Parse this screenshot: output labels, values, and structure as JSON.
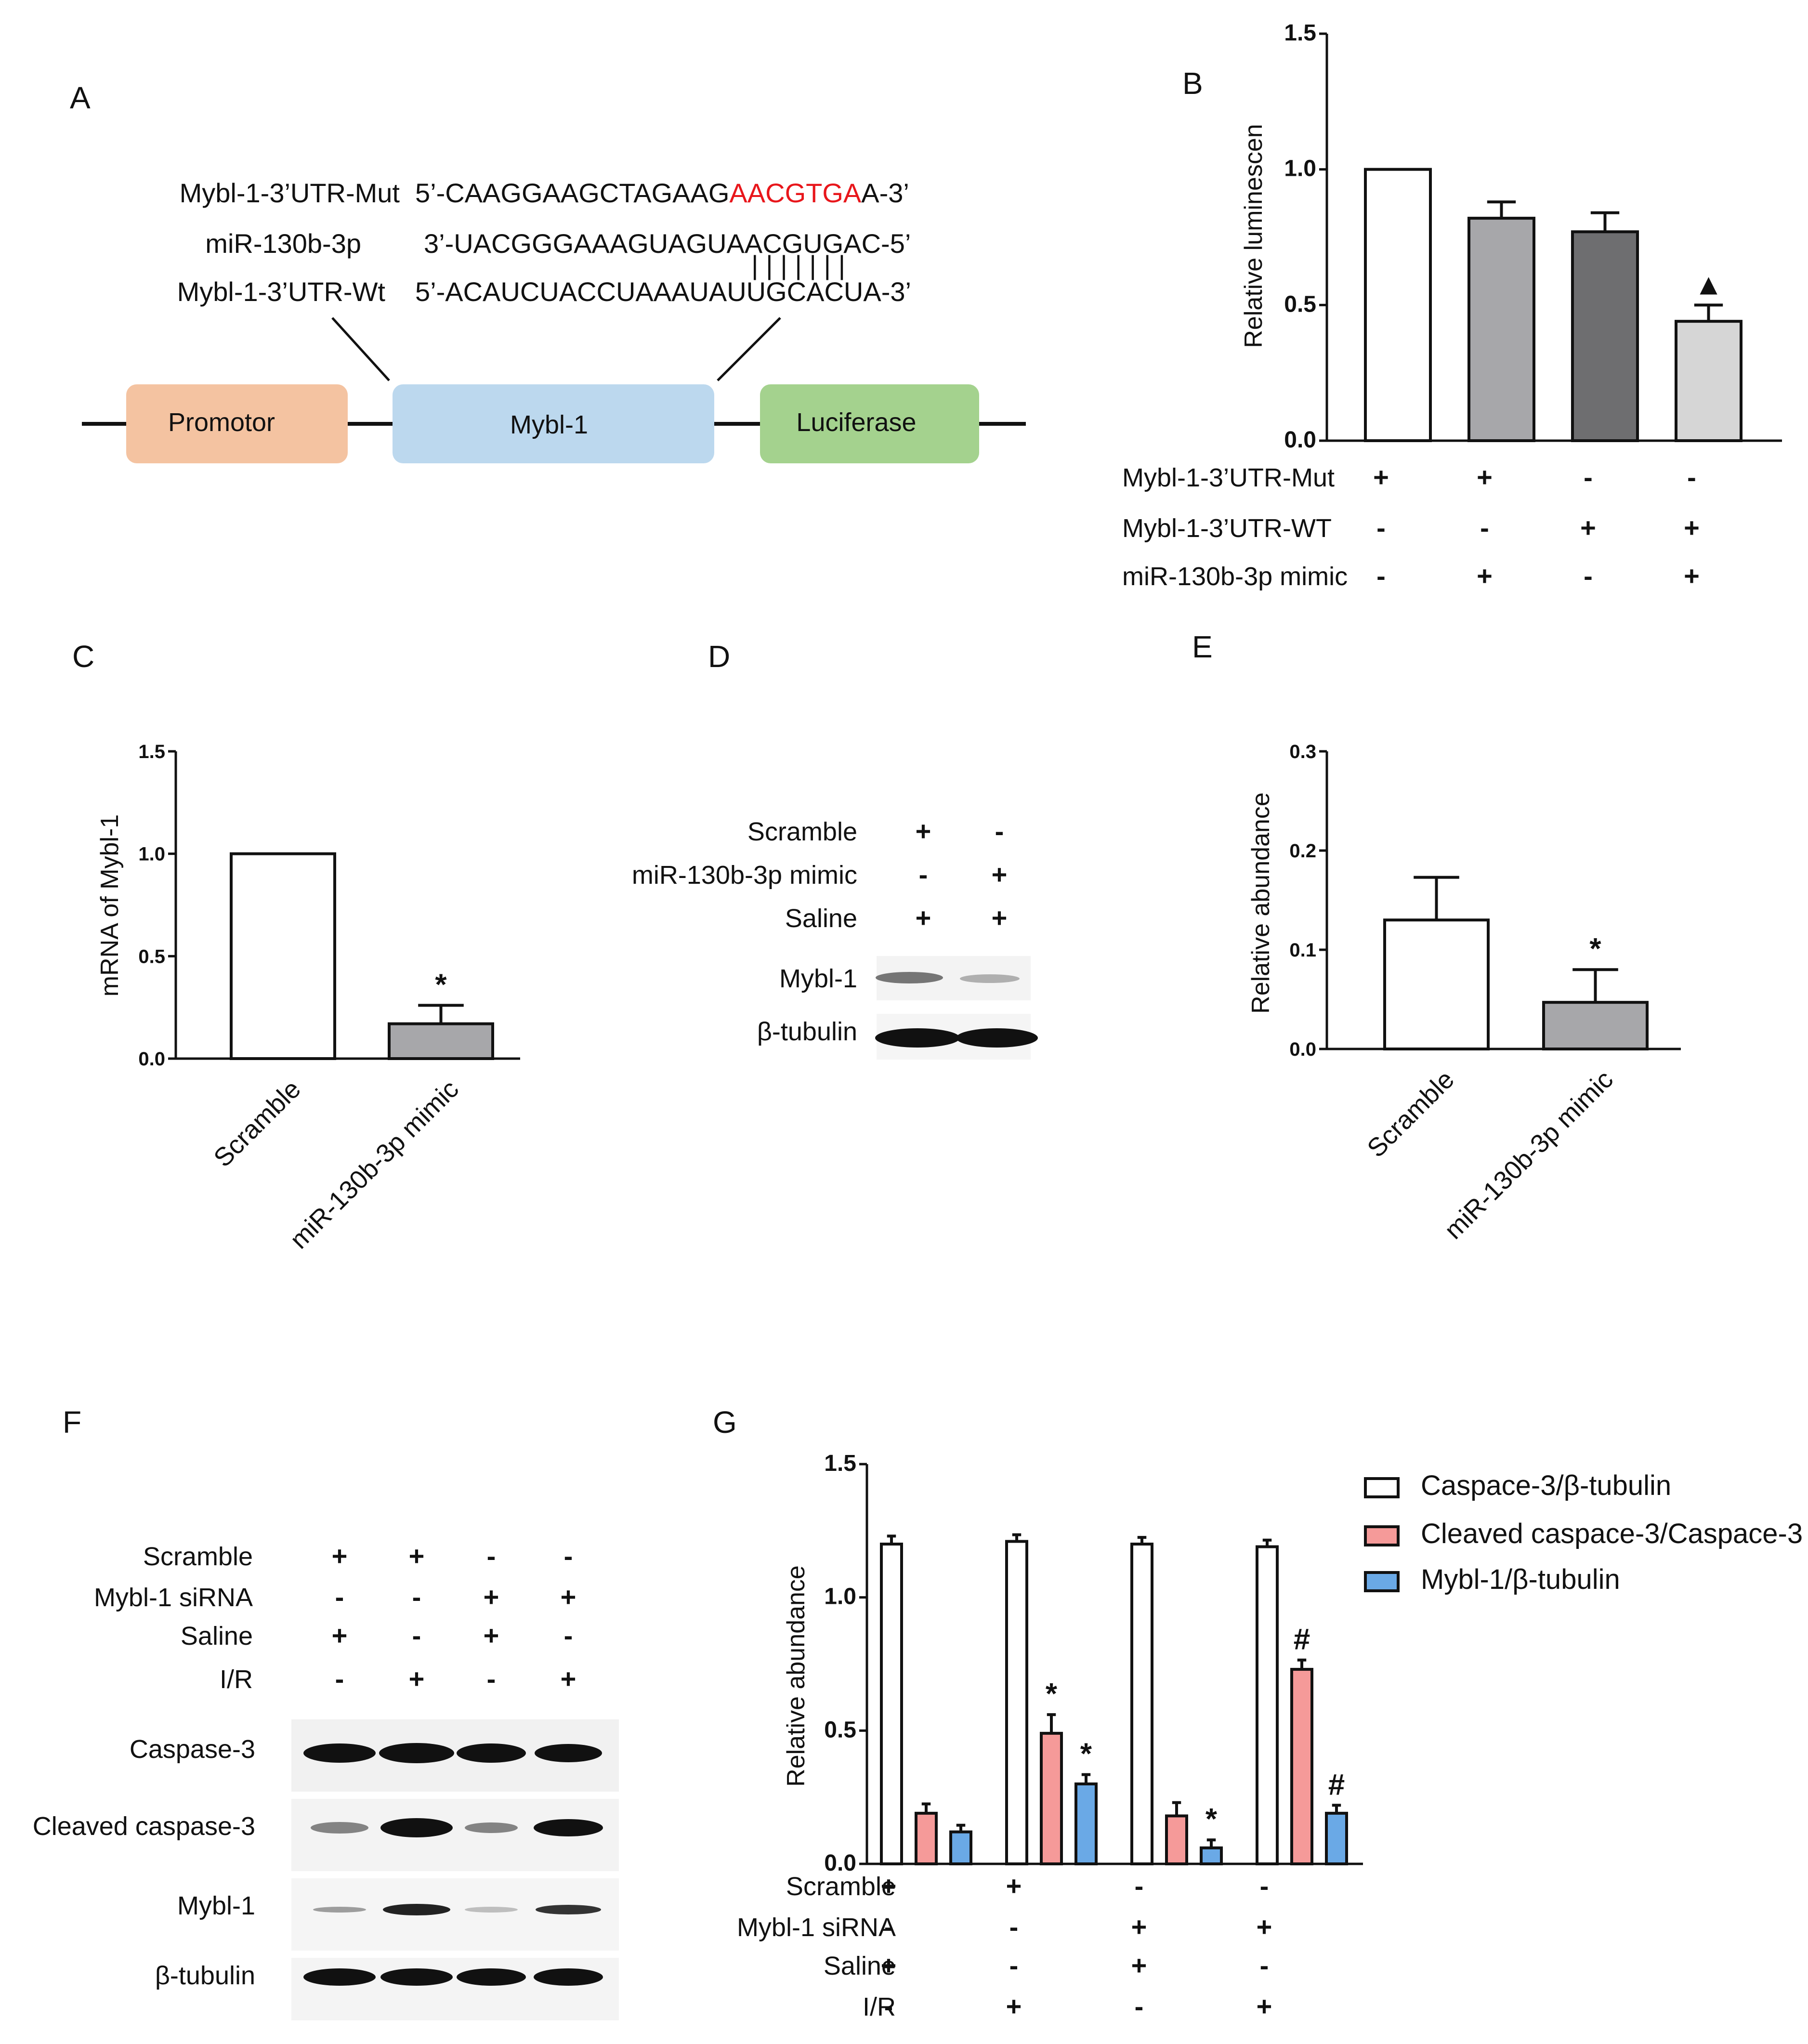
{
  "panels": {
    "A": "A",
    "B": "B",
    "C": "C",
    "D": "D",
    "E": "E",
    "F": "F",
    "G": "G"
  },
  "panelA": {
    "rows": [
      {
        "label": "Mybl-1-3’UTR-Mut",
        "seq_black": "5’-CAAGGAAGCTAGAAG",
        "seq_red": "AACGTGA",
        "seq_tail": "A-3’"
      },
      {
        "label": "miR-130b-3p",
        "seq": "3’-UACGGGAAAGUAGUAACGUGAC-5’"
      },
      {
        "label": "Mybl-1-3’UTR-Wt",
        "seq": "5’-ACAUCUACCUAAAUAUUGCACUA-3’"
      }
    ],
    "pairing": "| | | | | | |",
    "boxes": [
      {
        "label": "Promotor",
        "color": "#F4C3A1"
      },
      {
        "label": "Mybl-1",
        "color": "#BCD8EE"
      },
      {
        "label": "Luciferase",
        "color": "#A4D28E"
      }
    ],
    "red_color": "#E8161B"
  },
  "chart_data": [
    {
      "panel": "B",
      "type": "bar",
      "title": "",
      "xlabel": "",
      "ylabel": "Relative luminescen",
      "ylim": [
        0,
        1.5
      ],
      "yticks": [
        "0.0",
        "0.5",
        "1.0",
        "1.5"
      ],
      "categories": [
        "Mut + mimic -",
        "Mut + mimic +",
        "WT + mimic -",
        "WT + mimic +"
      ],
      "values": [
        1.0,
        0.82,
        0.77,
        0.44
      ],
      "errors": [
        0,
        0.06,
        0.07,
        0.06
      ],
      "colors": [
        "#FFFFFF",
        "#A7A7AA",
        "#6E6E70",
        "#D6D6D6"
      ],
      "annotations": [
        "",
        "",
        "",
        "▲"
      ],
      "conditions": [
        {
          "name": "Mybl-1-3’UTR-Mut",
          "signs": [
            "+",
            "+",
            "-",
            "-"
          ]
        },
        {
          "name": "Mybl-1-3’UTR-WT",
          "signs": [
            "-",
            "-",
            "+",
            "+"
          ]
        },
        {
          "name": "miR-130b-3p mimic",
          "signs": [
            "-",
            "+",
            "-",
            "+"
          ]
        }
      ]
    },
    {
      "panel": "C",
      "type": "bar",
      "title": "",
      "xlabel": "",
      "ylabel": "mRNA of Mybl-1",
      "ylim": [
        0,
        1.5
      ],
      "yticks": [
        "0.0",
        "0.5",
        "1.0",
        "1.5"
      ],
      "categories": [
        "Scramble",
        "miR-130b-3p mimic"
      ],
      "values": [
        1.0,
        0.17
      ],
      "errors": [
        0,
        0.09
      ],
      "colors": [
        "#FFFFFF",
        "#A7A7AA"
      ],
      "annotations": [
        "",
        "*"
      ]
    },
    {
      "panel": "E",
      "type": "bar",
      "title": "",
      "xlabel": "",
      "ylabel": "Relative abundance",
      "ylim": [
        0,
        0.3
      ],
      "yticks": [
        "0.0",
        "0.1",
        "0.2",
        "0.3"
      ],
      "categories": [
        "Scramble",
        "miR-130b-3p mimic"
      ],
      "values": [
        0.13,
        0.047
      ],
      "errors": [
        0.043,
        0.033
      ],
      "colors": [
        "#FFFFFF",
        "#A7A7AA"
      ],
      "annotations": [
        "",
        "*"
      ]
    },
    {
      "panel": "G",
      "type": "bar",
      "title": "",
      "xlabel": "",
      "ylabel": "Relative abundance",
      "ylim": [
        0,
        1.5
      ],
      "yticks": [
        "0.0",
        "0.5",
        "1.0",
        "1.5"
      ],
      "categories": [
        "Scramble+Saline",
        "Scramble+I/R",
        "siRNA+Saline",
        "siRNA+I/R"
      ],
      "series": [
        {
          "name": "Caspace-3/β-tubulin",
          "color": "#FFFFFF",
          "values": [
            1.2,
            1.21,
            1.2,
            1.19
          ],
          "errors": [
            0.03,
            0.025,
            0.025,
            0.025
          ],
          "annotations": [
            "",
            "",
            "",
            ""
          ]
        },
        {
          "name": "Cleaved caspace-3/Caspace-3",
          "color": "#F59A99",
          "values": [
            0.19,
            0.49,
            0.18,
            0.73
          ],
          "errors": [
            0.035,
            0.07,
            0.05,
            0.035
          ],
          "annotations": [
            "",
            "*",
            "",
            "#"
          ]
        },
        {
          "name": "Mybl-1/β-tubulin",
          "color": "#6AA9E6",
          "values": [
            0.12,
            0.3,
            0.06,
            0.19
          ],
          "errors": [
            0.025,
            0.035,
            0.03,
            0.03
          ],
          "annotations": [
            "",
            "*",
            "*",
            "#"
          ]
        }
      ],
      "conditions": [
        {
          "name": "Scramble",
          "signs": [
            "+",
            "+",
            "-",
            "-"
          ]
        },
        {
          "name": "Mybl-1 siRNA",
          "signs": [
            "-",
            "-",
            "+",
            "+"
          ]
        },
        {
          "name": "Saline",
          "signs": [
            "+",
            "-",
            "+",
            "-"
          ]
        },
        {
          "name": "I/R",
          "signs": [
            "-",
            "+",
            "-",
            "+"
          ]
        }
      ]
    }
  ],
  "panelD": {
    "conditions": [
      {
        "name": "Scramble",
        "signs": [
          "+",
          "-"
        ]
      },
      {
        "name": "miR-130b-3p mimic",
        "signs": [
          "-",
          "+"
        ]
      },
      {
        "name": "Saline",
        "signs": [
          "+",
          "+"
        ]
      }
    ],
    "bands": [
      "Mybl-1",
      "β-tubulin"
    ]
  },
  "panelF": {
    "conditions": [
      {
        "name": "Scramble",
        "signs": [
          "+",
          "+",
          "-",
          "-"
        ]
      },
      {
        "name": "Mybl-1 siRNA",
        "signs": [
          "-",
          "-",
          "+",
          "+"
        ]
      },
      {
        "name": "Saline",
        "signs": [
          "+",
          "-",
          "+",
          "-"
        ]
      },
      {
        "name": "I/R",
        "signs": [
          "-",
          "+",
          "-",
          "+"
        ]
      }
    ],
    "bands": [
      "Caspase-3",
      "Cleaved caspase-3",
      "Mybl-1",
      "β-tubulin"
    ]
  }
}
